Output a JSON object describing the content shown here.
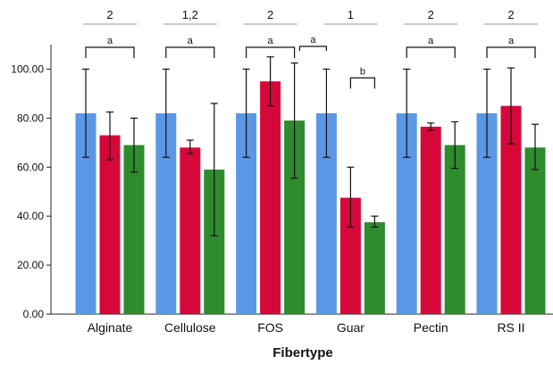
{
  "chart_data": {
    "type": "bar",
    "xlabel": "Fibertype",
    "ylabel": "",
    "ylim": [
      0,
      110
    ],
    "yticks": [
      "0.00",
      "20.00",
      "40.00",
      "60.00",
      "80.00",
      "100.00"
    ],
    "grid": false,
    "categories": [
      "Alginate",
      "Cellulose",
      "FOS",
      "Guar",
      "Pectin",
      "RS II"
    ],
    "series": [
      {
        "color": "#5b97e5",
        "values": [
          82,
          82,
          82,
          82,
          82,
          82
        ],
        "err_low": [
          64,
          64,
          64,
          64,
          64,
          64
        ],
        "err_high": [
          100,
          100,
          100,
          100,
          100,
          100
        ]
      },
      {
        "color": "#d6083a",
        "values": [
          73,
          68,
          95,
          47.5,
          76.5,
          85
        ],
        "err_low": [
          63,
          65.5,
          85,
          35.5,
          75,
          69.5
        ],
        "err_high": [
          82.5,
          71,
          105,
          60,
          78,
          100.5
        ]
      },
      {
        "color": "#2e8b2e",
        "values": [
          69,
          59,
          79,
          37.5,
          69,
          68
        ],
        "err_low": [
          58,
          32,
          55.5,
          35.5,
          59.5,
          59
        ],
        "err_high": [
          80,
          86,
          102.5,
          40,
          78.5,
          77.5
        ]
      }
    ],
    "group_labels": [
      "2",
      "1,2",
      "2",
      "1",
      "2",
      "2"
    ],
    "sig_brackets": [
      {
        "category": 0,
        "from": 0,
        "to": 2,
        "label": "a"
      },
      {
        "category": 1,
        "from": 0,
        "to": 2,
        "label": "a"
      },
      {
        "category": 2,
        "from": 0,
        "to": 2,
        "label": "a"
      },
      {
        "category": 3,
        "from": 0,
        "to": 0,
        "label": "a"
      },
      {
        "category": 3,
        "from": 1,
        "to": 2,
        "label": "b"
      },
      {
        "category": 4,
        "from": 0,
        "to": 2,
        "label": "a"
      },
      {
        "category": 5,
        "from": 0,
        "to": 2,
        "label": "a"
      }
    ]
  }
}
